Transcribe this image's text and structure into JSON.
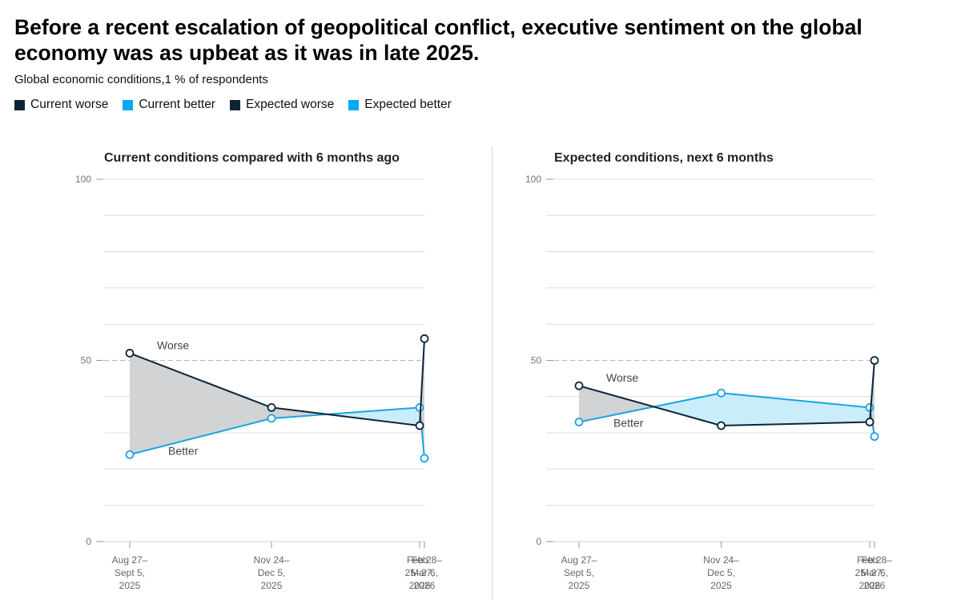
{
  "title": "Before a recent escalation of geopolitical conflict, executive sentiment on the global economy was as upbeat as it was in late 2025.",
  "subtitle": "Global economic conditions,1 % of respondents",
  "legend": [
    {
      "label": "Current worse",
      "color": "#0d2437"
    },
    {
      "label": "Current better",
      "color": "#00a9f4"
    },
    {
      "label": "Expected worse",
      "color": "#0d2437"
    },
    {
      "label": "Expected better",
      "color": "#00a9f4"
    }
  ],
  "colors": {
    "worse": "#0d2437",
    "better": "#1aa3e4",
    "worse_fill": "#d1d3d4",
    "better_fill": "#c9edfb",
    "grid": "#dcdcdc",
    "reference": "#b5b5b5"
  },
  "chart_data": [
    {
      "type": "line",
      "title": "Current conditions compared with 6 months ago",
      "ylim": [
        0,
        100
      ],
      "y_ticks": [
        {
          "value": 0,
          "label": "0"
        },
        {
          "value": 50,
          "label": "50"
        },
        {
          "value": 100,
          "label": "100"
        }
      ],
      "gridlines": [
        10,
        20,
        30,
        40,
        50,
        60,
        70,
        80,
        90,
        100
      ],
      "reference_line": 50,
      "x_axis_dates": [
        {
          "date": "2025-08-27",
          "label": [
            "Aug 27–",
            "Sept 5,",
            "2025"
          ]
        },
        {
          "date": "2025-11-24",
          "label": [
            "Nov 24–",
            "Dec 5,",
            "2025"
          ]
        },
        {
          "date": "2026-02-25",
          "label": [
            "Feb",
            "25–27,",
            "2026"
          ]
        },
        {
          "date": "2026-02-28",
          "label": [
            "Feb 28–",
            "Mar 6,",
            "2026"
          ]
        }
      ],
      "series": [
        {
          "name": "Worse",
          "role": "worse",
          "x": [
            "2025-08-27",
            "2025-11-24",
            "2026-02-25",
            "2026-02-28"
          ],
          "values": [
            52,
            37,
            32,
            56
          ]
        },
        {
          "name": "Better",
          "role": "better",
          "x": [
            "2025-08-27",
            "2025-11-24",
            "2026-02-25",
            "2026-02-28"
          ],
          "values": [
            24,
            34,
            37,
            23
          ]
        }
      ]
    },
    {
      "type": "line",
      "title": "Expected conditions, next 6 months",
      "ylim": [
        0,
        100
      ],
      "y_ticks": [
        {
          "value": 0,
          "label": "0"
        },
        {
          "value": 50,
          "label": "50"
        },
        {
          "value": 100,
          "label": "100"
        }
      ],
      "gridlines": [
        10,
        20,
        30,
        40,
        50,
        60,
        70,
        80,
        90,
        100
      ],
      "reference_line": 50,
      "x_axis_dates": [
        {
          "date": "2025-08-27",
          "label": [
            "Aug 27–",
            "Sept 5,",
            "2025"
          ]
        },
        {
          "date": "2025-11-24",
          "label": [
            "Nov 24–",
            "Dec 5,",
            "2025"
          ]
        },
        {
          "date": "2026-02-25",
          "label": [
            "Feb",
            "25–27,",
            "2026"
          ]
        },
        {
          "date": "2026-02-28",
          "label": [
            "Feb 28–",
            "Mar 6,",
            "2026"
          ]
        }
      ],
      "series": [
        {
          "name": "Worse",
          "role": "worse",
          "x": [
            "2025-08-27",
            "2025-11-24",
            "2026-02-25",
            "2026-02-28"
          ],
          "values": [
            43,
            32,
            33,
            50
          ]
        },
        {
          "name": "Better",
          "role": "better",
          "x": [
            "2025-08-27",
            "2025-11-24",
            "2026-02-25",
            "2026-02-28"
          ],
          "values": [
            33,
            41,
            37,
            29
          ]
        }
      ]
    }
  ]
}
